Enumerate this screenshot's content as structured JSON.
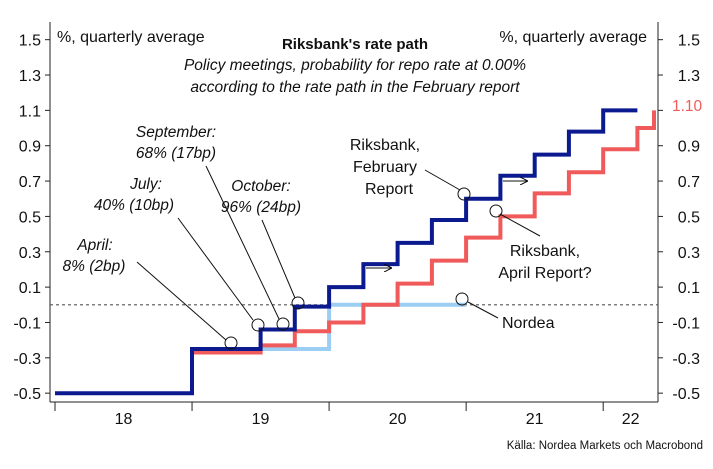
{
  "chart_data": {
    "type": "line",
    "title": "Riksbank's rate path",
    "subtitle": [
      "Policy meetings, probability for repo rate at 0.00%",
      "according to the rate path in the February report"
    ],
    "unit_label_left": "%, quarterly average",
    "unit_label_right": "%, quarterly average",
    "source": "Källa: Nordea Markets och Macrobond",
    "ylim": [
      -0.55,
      1.6
    ],
    "yticks": [
      -0.5,
      -0.3,
      -0.1,
      0.1,
      0.3,
      0.5,
      0.7,
      0.9,
      1.1,
      1.3,
      1.5
    ],
    "ytick_labels": [
      "-0.5",
      "-0.3",
      "-0.1",
      "0.1",
      "0.3",
      "0.5",
      "0.7",
      "0.9",
      "1.1",
      "1.3",
      "1.5"
    ],
    "xlim": [
      2018.0,
      2022.4
    ],
    "year_boundaries": [
      2018.0,
      2019.0,
      2020.0,
      2021.0,
      2022.0
    ],
    "xtick_labels": [
      {
        "label": "18",
        "x": 2018.5
      },
      {
        "label": "19",
        "x": 2019.5
      },
      {
        "label": "20",
        "x": 2020.5
      },
      {
        "label": "21",
        "x": 2021.5
      },
      {
        "label": "22",
        "x": 2022.2
      }
    ],
    "reference_line": 0.0,
    "end_value_label": "1.10",
    "series": [
      {
        "name": "Riksbank, February Report",
        "color": "#0b1a8f",
        "points": [
          [
            2018.0,
            -0.5
          ],
          [
            2019.0,
            -0.5
          ],
          [
            2019.0,
            -0.25
          ],
          [
            2019.5,
            -0.25
          ],
          [
            2019.5,
            -0.14
          ],
          [
            2019.75,
            -0.14
          ],
          [
            2019.75,
            -0.01
          ],
          [
            2020.0,
            -0.01
          ],
          [
            2020.0,
            0.1
          ],
          [
            2020.25,
            0.1
          ],
          [
            2020.25,
            0.23
          ],
          [
            2020.5,
            0.23
          ],
          [
            2020.5,
            0.35
          ],
          [
            2020.75,
            0.35
          ],
          [
            2020.75,
            0.48
          ],
          [
            2021.0,
            0.48
          ],
          [
            2021.0,
            0.6
          ],
          [
            2021.25,
            0.6
          ],
          [
            2021.25,
            0.73
          ],
          [
            2021.5,
            0.73
          ],
          [
            2021.5,
            0.85
          ],
          [
            2021.75,
            0.85
          ],
          [
            2021.75,
            0.98
          ],
          [
            2022.0,
            0.98
          ],
          [
            2022.0,
            1.1
          ],
          [
            2022.25,
            1.1
          ]
        ]
      },
      {
        "name": "Riksbank, April Report?",
        "color": "#f05a5a",
        "points": [
          [
            2019.0,
            -0.27
          ],
          [
            2019.5,
            -0.27
          ],
          [
            2019.5,
            -0.23
          ],
          [
            2019.75,
            -0.23
          ],
          [
            2019.75,
            -0.15
          ],
          [
            2020.0,
            -0.15
          ],
          [
            2020.0,
            -0.1
          ],
          [
            2020.25,
            -0.1
          ],
          [
            2020.25,
            0.0
          ],
          [
            2020.5,
            0.0
          ],
          [
            2020.5,
            0.12
          ],
          [
            2020.75,
            0.12
          ],
          [
            2020.75,
            0.25
          ],
          [
            2021.0,
            0.25
          ],
          [
            2021.0,
            0.38
          ],
          [
            2021.25,
            0.38
          ],
          [
            2021.25,
            0.5
          ],
          [
            2021.5,
            0.5
          ],
          [
            2021.5,
            0.63
          ],
          [
            2021.75,
            0.63
          ],
          [
            2021.75,
            0.75
          ],
          [
            2022.0,
            0.75
          ],
          [
            2022.0,
            0.88
          ],
          [
            2022.25,
            0.88
          ],
          [
            2022.25,
            1.0
          ],
          [
            2022.5,
            1.0
          ],
          [
            2022.5,
            1.1
          ],
          [
            2022.75,
            1.1
          ]
        ]
      },
      {
        "name": "Nordea",
        "color": "#9ccdf2",
        "points": [
          [
            2019.0,
            -0.25
          ],
          [
            2020.0,
            -0.25
          ],
          [
            2020.0,
            0.0
          ],
          [
            2021.0,
            0.0
          ]
        ]
      }
    ],
    "annotations": [
      {
        "lines": [
          "April:",
          "8% (2bp)"
        ],
        "target": [
          2019.3,
          -0.24
        ]
      },
      {
        "lines": [
          "July:",
          "40% (10bp)"
        ],
        "target": [
          2019.5,
          -0.14
        ]
      },
      {
        "lines": [
          "September:",
          "68% (17bp)"
        ],
        "target": [
          2019.6,
          -0.14
        ]
      },
      {
        "lines": [
          "October:",
          "96% (24bp)"
        ],
        "target": [
          2019.8,
          -0.01
        ]
      },
      {
        "lines": [
          "Riksbank,",
          "February",
          "Report"
        ],
        "target": [
          2021.0,
          0.6
        ]
      },
      {
        "lines": [
          "Riksbank,",
          "April Report?"
        ],
        "target": [
          2021.25,
          0.5
        ]
      },
      {
        "lines": [
          "Nordea"
        ],
        "target": [
          2021.0,
          0.0
        ]
      }
    ]
  }
}
